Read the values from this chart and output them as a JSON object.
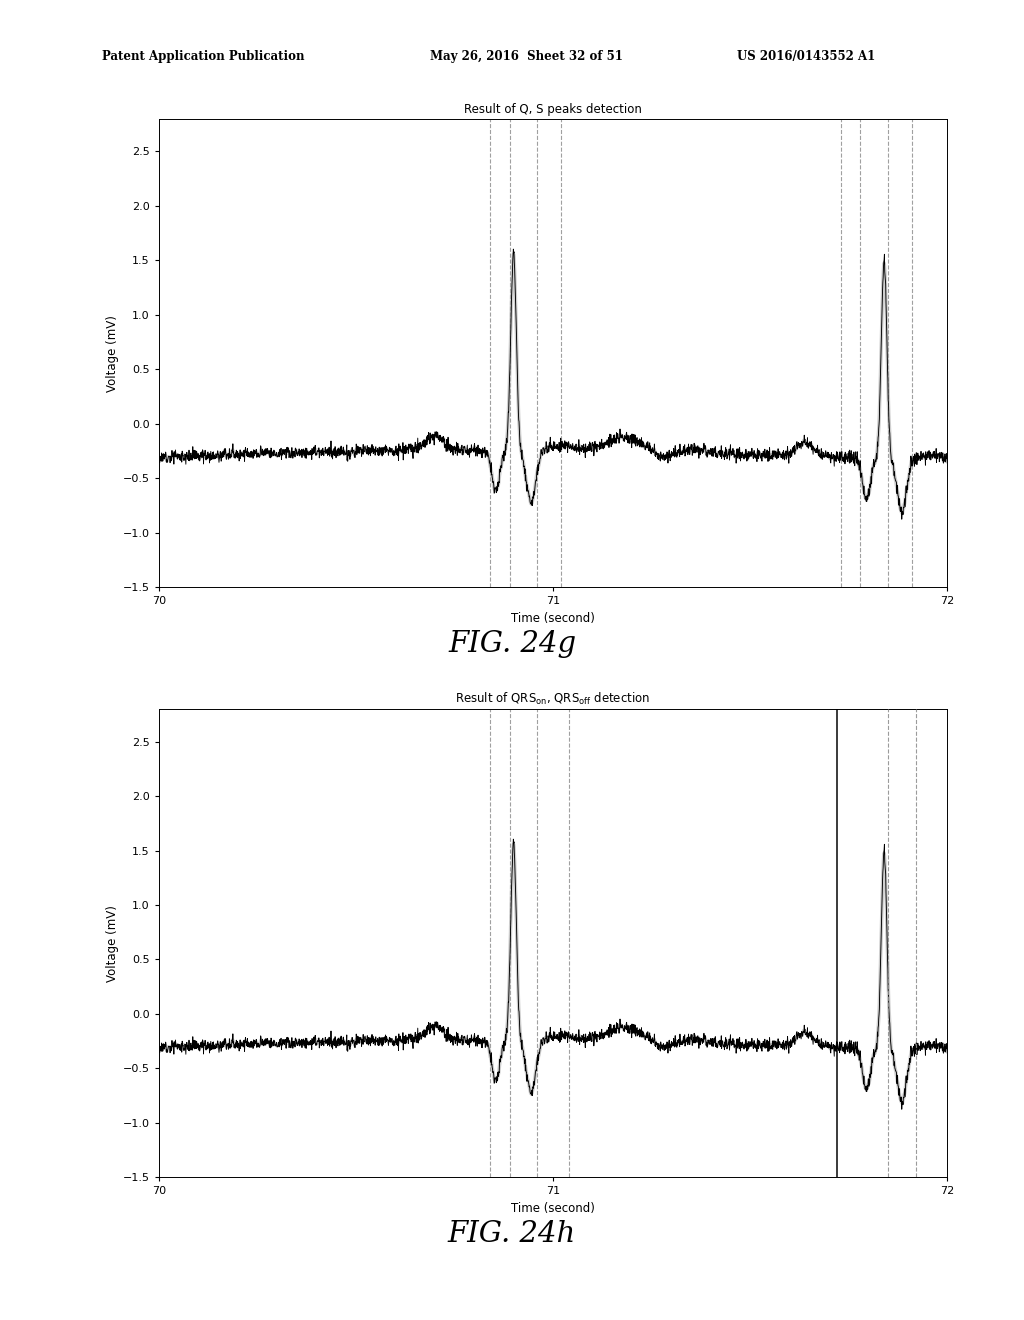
{
  "fig_width": 10.24,
  "fig_height": 13.2,
  "dpi": 100,
  "bg_color": "#ffffff",
  "header_left": "Patent Application Publication",
  "header_mid": "May 26, 2016  Sheet 32 of 51",
  "header_right": "US 2016/0143552 A1",
  "plot1": {
    "title": "Result of Q, S peaks detection",
    "xlabel": "Time (second)",
    "ylabel": "Voltage (mV)",
    "xlim": [
      70,
      72
    ],
    "ylim": [
      -1.5,
      2.8
    ],
    "yticks": [
      -1.5,
      -1.0,
      -0.5,
      0,
      0.5,
      1.0,
      1.5,
      2.0,
      2.5
    ],
    "xticks": [
      70,
      71,
      72
    ],
    "vlines_g1": [
      70.84,
      70.89,
      70.96,
      71.02
    ],
    "vlines_g1_styles": [
      "--",
      "--",
      "--",
      "--"
    ],
    "vlines_g2": [
      71.73,
      71.78,
      71.85,
      71.91
    ],
    "vlines_g2_styles": [
      "--",
      "--",
      "--",
      "--"
    ]
  },
  "plot2": {
    "xlabel": "Time (second)",
    "ylabel": "Voltage (mV)",
    "xlim": [
      70,
      72
    ],
    "ylim": [
      -1.5,
      2.8
    ],
    "yticks": [
      -1.5,
      -1.0,
      -0.5,
      0,
      0.5,
      1.0,
      1.5,
      2.0,
      2.5
    ],
    "xticks": [
      70,
      71,
      72
    ],
    "vlines_g1": [
      70.84,
      70.89,
      70.96,
      71.04
    ],
    "vlines_g1_styles": [
      "--",
      "--",
      "--",
      "--"
    ],
    "vlines_g2": [
      71.72,
      71.85,
      71.92
    ],
    "vlines_g2_styles": [
      "-",
      "--",
      "--"
    ]
  },
  "fig24g_label": "FIG. 24g",
  "fig24h_label": "FIG. 24h",
  "beat_times": [
    70.9,
    71.84
  ],
  "beat_amplitude": 1.82,
  "ecg_seed": 12
}
